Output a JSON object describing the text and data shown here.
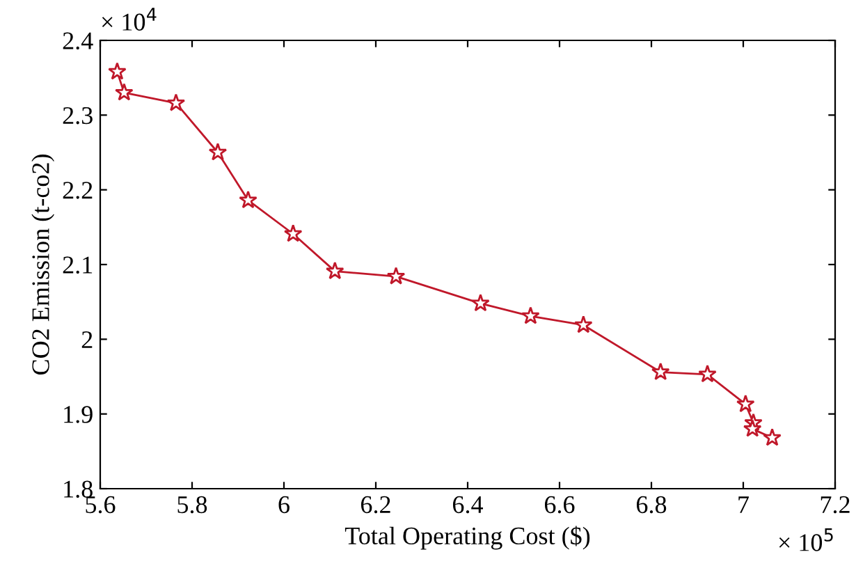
{
  "chart_data": {
    "type": "line",
    "xlabel": "Total Operating Cost ($)",
    "ylabel": "CO2 Emission (t-co2)",
    "annotations": [
      "× 10$^{4}$",
      "× 10$^{5}$"
    ],
    "x": [
      5.637,
      5.652,
      5.765,
      5.856,
      5.922,
      6.02,
      6.111,
      6.244,
      6.428,
      6.537,
      6.652,
      6.82,
      6.922,
      7.005,
      7.022,
      7.02,
      7.063
    ],
    "series": [
      {
        "color": "#c0182a",
        "values": [
          2.358,
          2.33,
          2.316,
          2.25,
          2.186,
          2.141,
          2.091,
          2.084,
          2.048,
          2.031,
          2.019,
          1.956,
          1.953,
          1.913,
          1.888,
          1.88,
          1.868
        ]
      }
    ],
    "xlim": [
      5.6,
      7.2
    ],
    "xticks": [
      5.6,
      5.8,
      6,
      6.2,
      6.4,
      6.6,
      6.8,
      7,
      7.2
    ],
    "ylim": [
      1.8,
      2.4
    ],
    "yticks": [
      1.8,
      1.9,
      2,
      2.1,
      2.2,
      2.3,
      2.4
    ],
    "grid": false,
    "legend": false,
    "marker": "star",
    "line_style": "solid"
  }
}
